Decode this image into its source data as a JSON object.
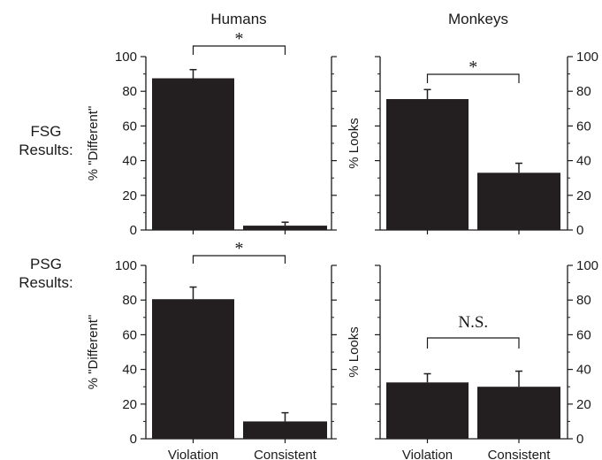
{
  "column_titles": [
    "Humans",
    "Monkeys"
  ],
  "row_labels": [
    {
      "line1": "FSG",
      "line2": "Results:"
    },
    {
      "line1": "PSG",
      "line2": "Results:"
    }
  ],
  "colors": {
    "bar": "#231f20",
    "axis": "#1a1a1a"
  },
  "chart_data": [
    {
      "type": "bar",
      "panel": "Humans FSG",
      "categories": [
        "Violation",
        "Consistent"
      ],
      "values": [
        87.5,
        2.5
      ],
      "errors": [
        5,
        2
      ],
      "ylabel": "% \"Different\"",
      "ylim": [
        0,
        100
      ],
      "yticks": [
        0,
        20,
        40,
        60,
        80,
        100
      ],
      "tick_labels_side": "left",
      "show_category_labels": false,
      "significance": "*",
      "grid": false
    },
    {
      "type": "bar",
      "panel": "Monkeys FSG",
      "categories": [
        "Violation",
        "Consistent"
      ],
      "values": [
        75.5,
        33
      ],
      "errors": [
        5.5,
        5.5
      ],
      "ylabel": "% Looks",
      "ylim": [
        0,
        100
      ],
      "yticks": [
        0,
        20,
        40,
        60,
        80,
        100
      ],
      "tick_labels_side": "right",
      "show_category_labels": false,
      "significance": "*",
      "grid": false
    },
    {
      "type": "bar",
      "panel": "Humans PSG",
      "categories": [
        "Violation",
        "Consistent"
      ],
      "values": [
        80.5,
        10
      ],
      "errors": [
        7,
        5
      ],
      "ylabel": "% \"Different\"",
      "ylim": [
        0,
        100
      ],
      "yticks": [
        0,
        20,
        40,
        60,
        80,
        100
      ],
      "tick_labels_side": "left",
      "show_category_labels": true,
      "significance": "*",
      "grid": false
    },
    {
      "type": "bar",
      "panel": "Monkeys PSG",
      "categories": [
        "Violation",
        "Consistent"
      ],
      "values": [
        32.5,
        30
      ],
      "errors": [
        5,
        9
      ],
      "ylabel": "% Looks",
      "ylim": [
        0,
        100
      ],
      "yticks": [
        0,
        20,
        40,
        60,
        80,
        100
      ],
      "tick_labels_side": "right",
      "show_category_labels": true,
      "significance": "N.S.",
      "grid": false
    }
  ]
}
